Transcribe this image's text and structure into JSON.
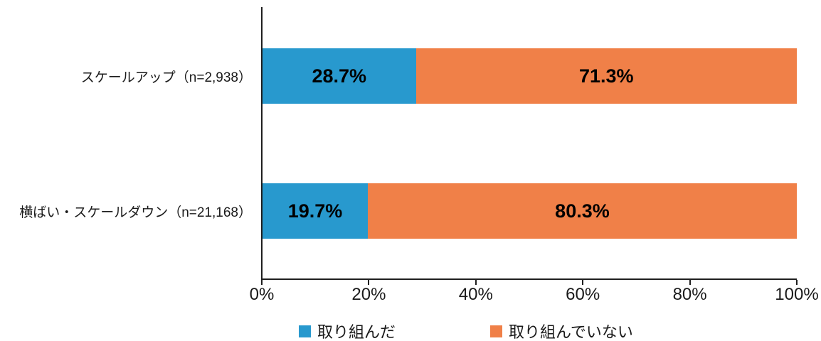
{
  "chart_data": {
    "type": "bar",
    "orientation": "horizontal",
    "stacked": true,
    "title": "",
    "xlabel": "",
    "ylabel": "",
    "xlim": [
      0,
      100
    ],
    "grid": false,
    "legend_position": "bottom",
    "categories": [
      "スケールアップ（n=2,938）",
      "横ばい・スケールダウン（n=21,168）"
    ],
    "series": [
      {
        "name": "取り組んだ",
        "color": "#2899CE",
        "values": [
          28.7,
          19.7
        ],
        "labels": [
          "28.7%",
          "19.7%"
        ]
      },
      {
        "name": "取り組んでいない",
        "color": "#F08048",
        "values": [
          71.3,
          80.3
        ],
        "labels": [
          "71.3%",
          "80.3%"
        ]
      }
    ],
    "x_ticks": [
      "0%",
      "20%",
      "40%",
      "60%",
      "80%",
      "100%"
    ],
    "axis_color": "#1f1f1f",
    "value_label_color": "#000000"
  }
}
